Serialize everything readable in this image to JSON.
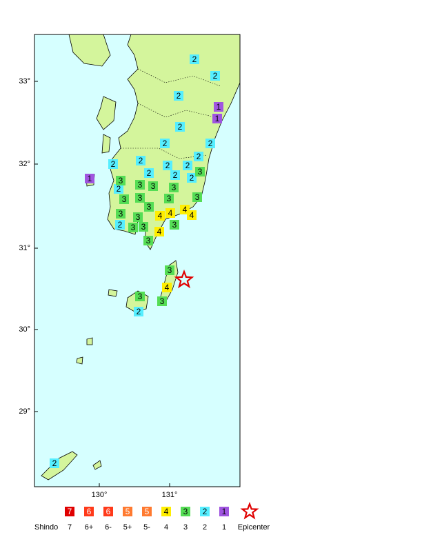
{
  "map": {
    "lat_labels": [
      "33°",
      "32°",
      "31°",
      "30°",
      "29°"
    ],
    "lon_labels": [
      "130°",
      "131°"
    ],
    "stations": [
      "2",
      "2",
      "2",
      "2",
      "2",
      "2",
      "2",
      "2",
      "2",
      "2",
      "2",
      "2",
      "2",
      "2",
      "2",
      "2",
      "2",
      "2",
      "1",
      "1",
      "1",
      "3",
      "3",
      "3",
      "3",
      "3",
      "3",
      "3",
      "3",
      "3",
      "3",
      "3",
      "3",
      "3",
      "3",
      "3",
      "3",
      "3",
      "3",
      "3",
      "4",
      "4",
      "4",
      "4",
      "4",
      "4"
    ],
    "legend": {
      "title": "Shindo",
      "boxes": [
        "7",
        "6",
        "6",
        "5",
        "5",
        "4",
        "3",
        "2",
        "1"
      ],
      "labels": [
        "7",
        "6+",
        "6-",
        "5+",
        "5-",
        "4",
        "3",
        "2",
        "1"
      ],
      "epicenter": "Epicenter"
    }
  }
}
